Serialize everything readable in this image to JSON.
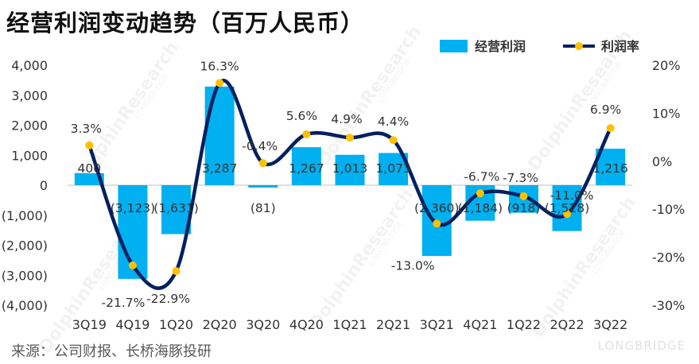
{
  "title": "经营利润变动趋势（百万人民币）",
  "source": "来源：公司财报、长桥海豚投研",
  "watermark": "DolphinResearch",
  "watermark_brand": "LONGBRIDGE",
  "colors": {
    "bar": "#00B0F0",
    "line": "#002060",
    "marker": "#FFC000",
    "text": "#333333"
  },
  "chart_data": {
    "type": "bar",
    "categories": [
      "3Q19",
      "4Q19",
      "1Q20",
      "2Q20",
      "3Q20",
      "4Q20",
      "1Q21",
      "2Q21",
      "3Q21",
      "4Q21",
      "1Q22",
      "2Q22",
      "3Q22"
    ],
    "series": [
      {
        "name": "经营利润",
        "type": "bar",
        "axis": "left",
        "values": [
          400,
          -3123,
          -1631,
          3287,
          -81,
          1267,
          1013,
          1073,
          -2360,
          -1184,
          -918,
          -1528,
          1216
        ],
        "labels": [
          "400",
          "(3,123)",
          "(1,631)",
          "3,287",
          "(81)",
          "1,267",
          "1,013",
          "1,073",
          "(2,360)",
          "(1,184)",
          "(918)",
          "(1,528)",
          "1,216"
        ]
      },
      {
        "name": "利润率",
        "type": "line",
        "axis": "right",
        "values": [
          3.3,
          -21.7,
          -22.9,
          16.3,
          -0.4,
          5.6,
          4.9,
          4.4,
          -13.0,
          -6.7,
          -7.3,
          -11.0,
          6.9
        ],
        "labels": [
          "3.3%",
          "-21.7%",
          "-22.9%",
          "16.3%",
          "-0.4%",
          "5.6%",
          "4.9%",
          "4.4%",
          "-13.0%",
          "-6.7%",
          "-7.3%",
          "-11.0%",
          "6.9%"
        ]
      }
    ],
    "y_left": {
      "min": -4000,
      "max": 4000,
      "ticks": [
        "4,000",
        "3,000",
        "2,000",
        "1,000",
        "0",
        "(1,000)",
        "(2,000)",
        "(3,000)",
        "(4,000)"
      ]
    },
    "y_right": {
      "min": -30,
      "max": 20,
      "ticks": [
        "20%",
        "10%",
        "0%",
        "-10%",
        "-20%",
        "-30%"
      ]
    },
    "legend_position": "top-right",
    "grid": false
  }
}
